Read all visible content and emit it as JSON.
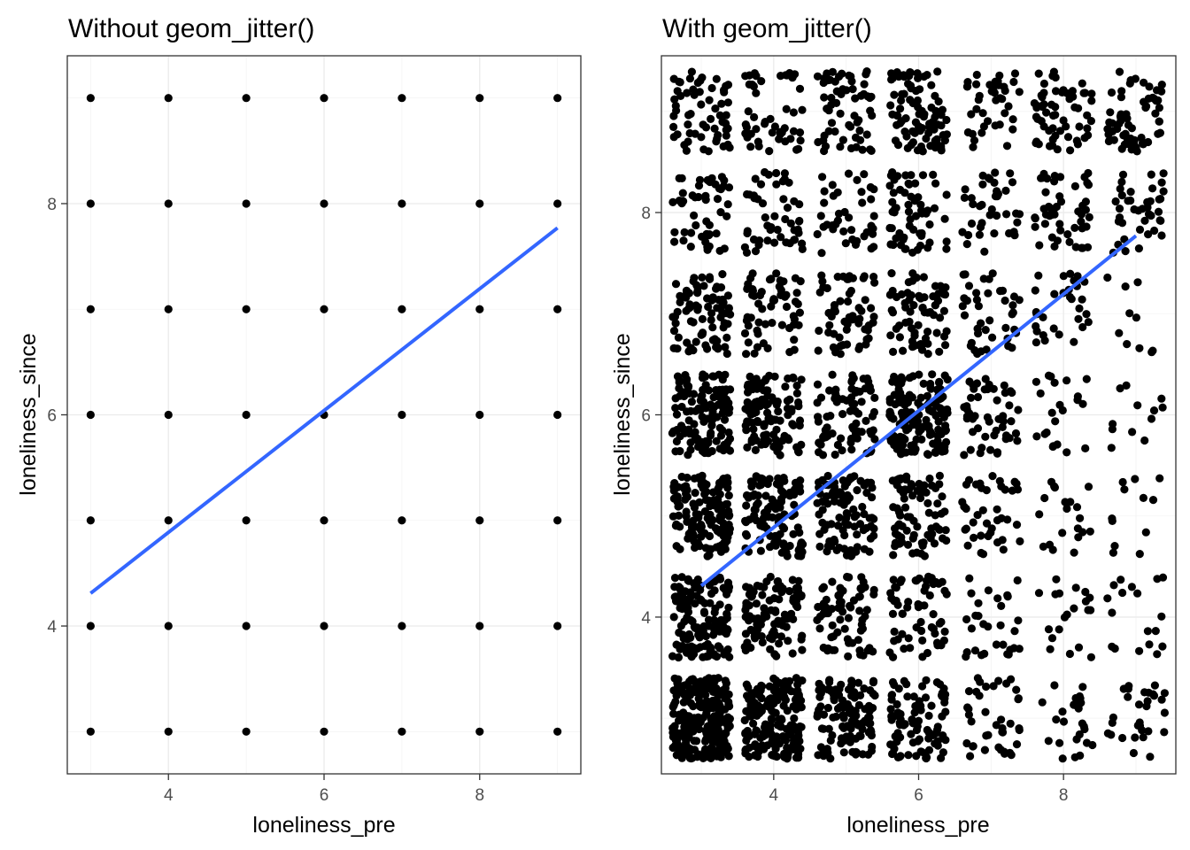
{
  "chart_data": [
    {
      "type": "scatter",
      "title": "Without geom_jitter()",
      "xlabel": "loneliness_pre",
      "ylabel": "loneliness_since",
      "xlim": [
        2.7,
        9.3
      ],
      "ylim": [
        2.6,
        9.4
      ],
      "xticks": [
        4,
        6,
        8
      ],
      "yticks": [
        4,
        6,
        8
      ],
      "grid": true,
      "legend": "none",
      "point_color": "#000000",
      "x_levels": [
        3,
        4,
        5,
        6,
        7,
        8,
        9
      ],
      "y_levels": [
        3,
        4,
        5,
        6,
        7,
        8,
        9
      ],
      "trend_line": {
        "color": "#3366FF",
        "x": [
          3,
          9
        ],
        "y": [
          4.31,
          7.77
        ]
      }
    },
    {
      "type": "scatter",
      "title": "With geom_jitter()",
      "xlabel": "loneliness_pre",
      "ylabel": "loneliness_since",
      "xlim": [
        2.45,
        9.55
      ],
      "ylim": [
        2.45,
        9.55
      ],
      "xticks": [
        4,
        6,
        8
      ],
      "yticks": [
        4,
        6,
        8
      ],
      "grid": true,
      "legend": "none",
      "point_color": "#000000",
      "jitter": 0.4,
      "x_levels": [
        3,
        4,
        5,
        6,
        7,
        8,
        9
      ],
      "y_levels": [
        3,
        4,
        5,
        6,
        7,
        8,
        9
      ],
      "cell_counts": [
        [
          260,
          180,
          110,
          90,
          40,
          25,
          30
        ],
        [
          150,
          100,
          70,
          60,
          30,
          20,
          18
        ],
        [
          140,
          110,
          100,
          80,
          40,
          20,
          12
        ],
        [
          130,
          110,
          80,
          150,
          50,
          22,
          12
        ],
        [
          80,
          60,
          60,
          70,
          40,
          30,
          10
        ],
        [
          50,
          50,
          40,
          60,
          40,
          50,
          40
        ],
        [
          60,
          50,
          60,
          90,
          40,
          60,
          60
        ]
      ],
      "trend_line": {
        "color": "#3366FF",
        "x": [
          3,
          9
        ],
        "y": [
          4.31,
          7.77
        ]
      }
    }
  ]
}
